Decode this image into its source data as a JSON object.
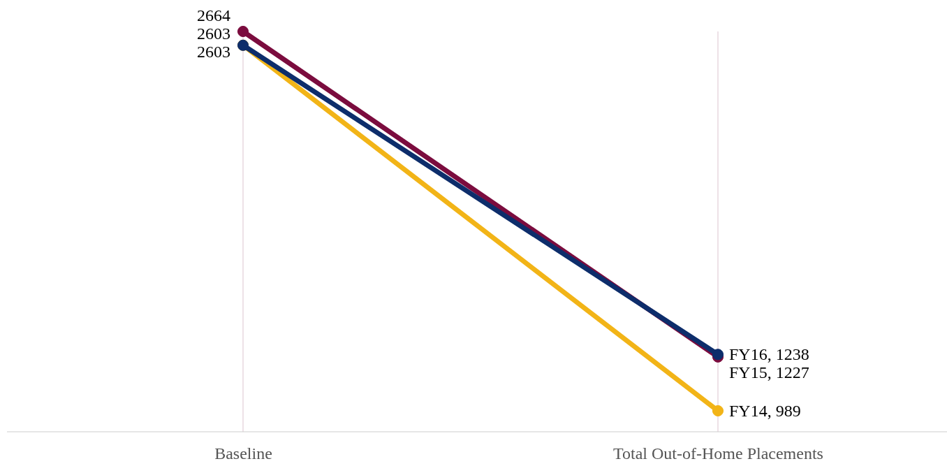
{
  "chart_data": {
    "type": "line",
    "categories": [
      "Baseline",
      "Total Out-of-Home Placements"
    ],
    "grid": "x",
    "marker": "circle",
    "series": [
      {
        "color": "#f2b417",
        "values": [
          2603,
          989
        ],
        "value_labels": [
          "2603",
          "FY14, 989"
        ]
      },
      {
        "color": "#7b0c3e",
        "values": [
          2664,
          1227
        ],
        "value_labels": [
          "2664",
          "FY15, 1227"
        ]
      },
      {
        "color": "#0d2d6b",
        "values": [
          2603,
          1238
        ],
        "value_labels": [
          "2603",
          "FY16, 1238"
        ]
      }
    ]
  }
}
